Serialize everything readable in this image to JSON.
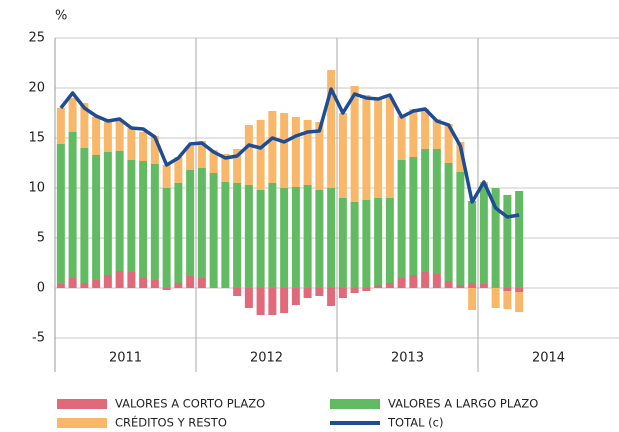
{
  "chart_data": {
    "type": "bar",
    "stacked": true,
    "ylabel": "%",
    "categories": [
      null,
      null,
      null,
      null,
      null,
      null,
      null,
      null,
      null,
      null,
      null,
      null,
      null,
      null,
      null,
      null,
      null,
      null,
      null,
      null,
      null,
      null,
      null,
      null,
      null,
      null,
      null,
      null,
      null,
      null,
      null,
      null,
      null,
      null,
      null,
      null,
      null,
      null,
      null,
      null
    ],
    "year_labels": [
      "2011",
      "2012",
      "2013",
      "2014"
    ],
    "series": [
      {
        "name": "VALORES A CORTO PLAZO",
        "color": "#e0697a",
        "values": [
          0.4,
          1.0,
          0.5,
          0.8,
          1.3,
          1.7,
          1.6,
          1.0,
          0.8,
          -0.2,
          0.5,
          1.2,
          1.0,
          0,
          0,
          -0.8,
          -2.0,
          -2.7,
          -2.7,
          -2.5,
          -1.7,
          -1.0,
          -0.8,
          -1.8,
          -1.0,
          -0.5,
          -0.3,
          0.3,
          0.5,
          1.0,
          1.3,
          1.6,
          1.4,
          0.7,
          0.3,
          0.5,
          0.4,
          0,
          -0.3,
          -0.4
        ]
      },
      {
        "name": "VALORES A LARGO PLAZO",
        "color": "#62bb62",
        "values": [
          14.0,
          14.6,
          13.5,
          12.5,
          12.3,
          12.0,
          11.2,
          11.7,
          11.6,
          10.0,
          10.0,
          10.6,
          11.0,
          11.5,
          10.6,
          10.5,
          10.3,
          9.8,
          10.5,
          10.0,
          10.1,
          10.3,
          9.8,
          10.0,
          9.0,
          8.6,
          8.8,
          8.7,
          8.5,
          11.8,
          11.8,
          12.3,
          12.5,
          11.8,
          11.3,
          8.2,
          10.0,
          10.0,
          9.3,
          9.7
        ]
      },
      {
        "name": "CRÉDITOS Y RESTO",
        "color": "#f9b869",
        "values": [
          3.6,
          3.4,
          4.5,
          3.8,
          3.2,
          3.0,
          3.2,
          2.9,
          2.8,
          2.3,
          2.6,
          2.4,
          2.7,
          2.3,
          2.8,
          3.4,
          6.0,
          7.0,
          7.2,
          7.5,
          7.0,
          6.5,
          6.8,
          11.8,
          8.5,
          11.6,
          10.5,
          10.0,
          10.0,
          4.4,
          4.8,
          4.0,
          3.0,
          3.9,
          3.0,
          -2.2,
          0.2,
          -2.0,
          -1.8,
          -2.0
        ]
      },
      {
        "name": "TOTAL (c)",
        "color": "#1f4d94",
        "type": "line",
        "values": [
          18.0,
          19.5,
          18.0,
          17.2,
          16.7,
          16.9,
          16.0,
          15.9,
          15.1,
          12.3,
          13.0,
          14.4,
          14.5,
          13.6,
          13.0,
          13.2,
          14.3,
          14.0,
          15.0,
          14.6,
          15.2,
          15.6,
          15.7,
          19.9,
          17.5,
          19.4,
          19.0,
          18.9,
          19.3,
          17.1,
          17.7,
          17.9,
          16.7,
          16.3,
          14.2,
          8.6,
          10.6,
          8.0,
          7.1,
          7.3
        ]
      }
    ],
    "ylim": [
      -5,
      25
    ],
    "yticks": [
      -5,
      0,
      5,
      10,
      15,
      20,
      25
    ],
    "grid": true
  }
}
